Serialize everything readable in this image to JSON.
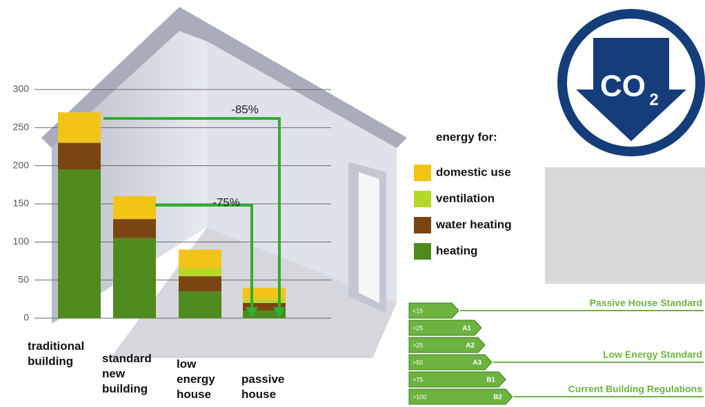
{
  "chart_data": {
    "type": "stacked-bar",
    "categories": [
      "traditional building",
      "standard new building",
      "low energy house",
      "passive house"
    ],
    "series": [
      {
        "name": "heating",
        "color": "#4f8a1e",
        "values": [
          195,
          105,
          35,
          10
        ]
      },
      {
        "name": "water heating",
        "color": "#7a4510",
        "values": [
          35,
          25,
          20,
          10
        ]
      },
      {
        "name": "ventilation",
        "color": "#b5d92a",
        "values": [
          0,
          0,
          10,
          5
        ]
      },
      {
        "name": "domestic use",
        "color": "#f2c418",
        "values": [
          40,
          30,
          25,
          15
        ]
      }
    ],
    "legend_title": "energy for:",
    "ylim": [
      0,
      300
    ],
    "yticks": [
      0,
      50,
      100,
      150,
      200,
      250,
      300
    ],
    "grid": true,
    "annotations": [
      "-85%",
      "-75%"
    ]
  },
  "logo": {
    "text": "CO",
    "subscript": "2"
  },
  "rating_scale": {
    "rows": [
      {
        "range": "<15"
      },
      {
        "range": "<25",
        "class": "A1"
      },
      {
        "range": ">25",
        "class": "A2"
      },
      {
        "range": ">50",
        "class": "A3"
      },
      {
        "range": ">75",
        "class": "B1"
      },
      {
        "range": ">100",
        "class": "B2"
      }
    ],
    "standards": [
      "Passive House Standard",
      "Low Energy Standard",
      "Current Building Regulations"
    ]
  }
}
